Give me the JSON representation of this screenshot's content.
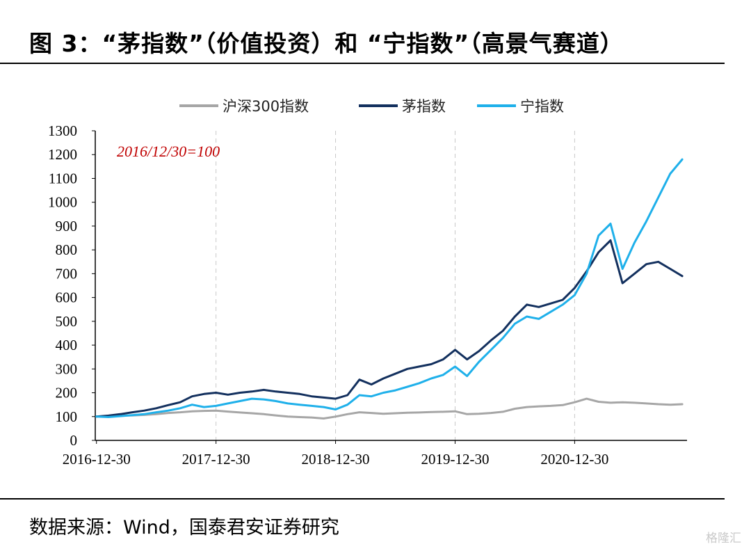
{
  "title": "图 3：“茅指数”（价值投资）和 “宁指数”（高景气赛道）",
  "source": "数据来源：Wind，国泰君安证券研究",
  "watermark": "格隆汇",
  "colors": {
    "csi300": "#a6a6a6",
    "mao": "#13305e",
    "ning": "#1fb0ea",
    "note": "#c00000",
    "grid": "#c8c8c8"
  },
  "chart_data": {
    "type": "line",
    "annotation": "2016/12/30=100",
    "ylim": [
      0,
      1300
    ],
    "yticks": [
      0,
      100,
      200,
      300,
      400,
      500,
      600,
      700,
      800,
      900,
      1000,
      1100,
      1200,
      1300
    ],
    "xlim": [
      2016.99,
      2021.94
    ],
    "xticks": [
      {
        "label": "2016-12-30",
        "x": 2017.0
      },
      {
        "label": "2017-12-30",
        "x": 2018.0
      },
      {
        "label": "2018-12-30",
        "x": 2019.0
      },
      {
        "label": "2019-12-30",
        "x": 2020.0
      },
      {
        "label": "2020-12-30",
        "x": 2021.0
      }
    ],
    "x": [
      2017.0,
      2017.1,
      2017.2,
      2017.3,
      2017.4,
      2017.5,
      2017.6,
      2017.7,
      2017.8,
      2017.9,
      2018.0,
      2018.1,
      2018.2,
      2018.3,
      2018.4,
      2018.5,
      2018.6,
      2018.7,
      2018.8,
      2018.9,
      2019.0,
      2019.1,
      2019.2,
      2019.3,
      2019.4,
      2019.5,
      2019.6,
      2019.7,
      2019.8,
      2019.9,
      2020.0,
      2020.1,
      2020.2,
      2020.3,
      2020.4,
      2020.5,
      2020.6,
      2020.7,
      2020.8,
      2020.9,
      2021.0,
      2021.1,
      2021.2,
      2021.3,
      2021.4,
      2021.5,
      2021.6,
      2021.7,
      2021.8,
      2021.9
    ],
    "series": [
      {
        "name": "沪深300指数",
        "color": "#a6a6a6",
        "values": [
          100,
          102,
          104,
          105,
          107,
          110,
          115,
          118,
          122,
          124,
          125,
          121,
          117,
          114,
          110,
          105,
          100,
          98,
          96,
          92,
          100,
          110,
          118,
          115,
          112,
          114,
          116,
          117,
          119,
          120,
          122,
          110,
          112,
          115,
          120,
          133,
          140,
          143,
          145,
          148,
          160,
          175,
          162,
          158,
          160,
          158,
          155,
          152,
          150,
          152
        ]
      },
      {
        "name": "茅指数",
        "color": "#13305e",
        "values": [
          100,
          104,
          110,
          118,
          125,
          135,
          148,
          160,
          185,
          195,
          200,
          192,
          200,
          205,
          212,
          205,
          200,
          195,
          185,
          180,
          175,
          190,
          255,
          235,
          260,
          280,
          300,
          310,
          320,
          340,
          380,
          340,
          375,
          420,
          460,
          520,
          570,
          560,
          575,
          590,
          640,
          710,
          790,
          840,
          660,
          700,
          740,
          750,
          720,
          690
        ]
      },
      {
        "name": "宁指数",
        "color": "#1fb0ea",
        "values": [
          100,
          98,
          102,
          106,
          110,
          118,
          125,
          135,
          150,
          140,
          145,
          155,
          165,
          175,
          172,
          165,
          155,
          150,
          145,
          140,
          130,
          150,
          190,
          185,
          200,
          210,
          225,
          240,
          260,
          275,
          310,
          270,
          330,
          380,
          430,
          490,
          520,
          510,
          540,
          570,
          610,
          700,
          860,
          910,
          720,
          830,
          920,
          1020,
          1120,
          1180
        ]
      }
    ]
  }
}
